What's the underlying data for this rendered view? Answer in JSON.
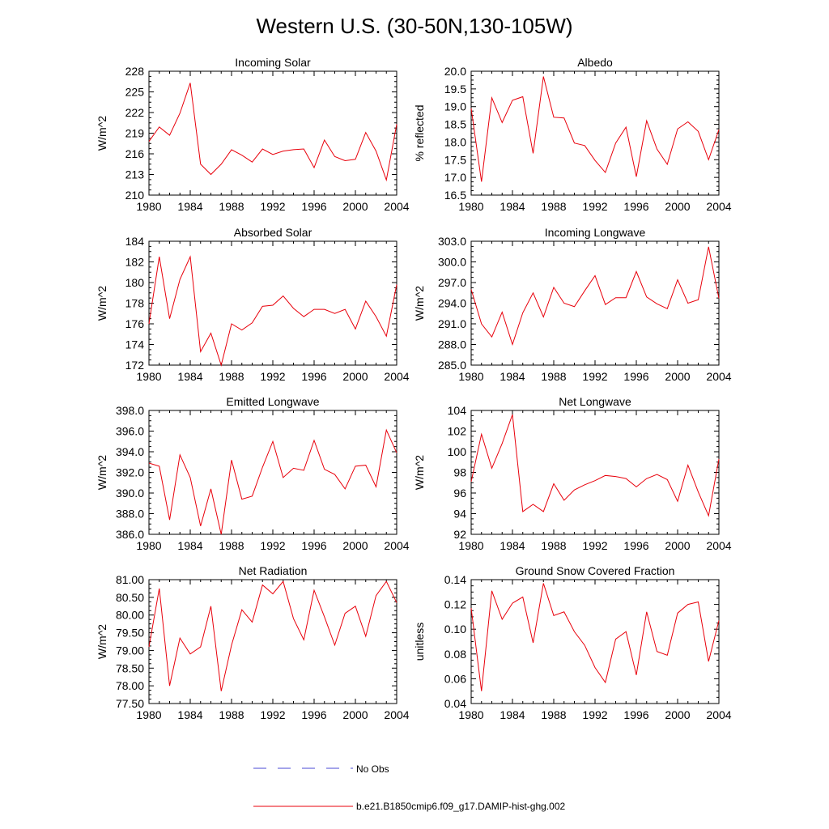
{
  "title": "Western U.S. (30-50N,130-105W)",
  "legend": {
    "items": [
      {
        "label": "No Obs",
        "color": "#4a4ad6",
        "dash": true
      },
      {
        "label": "b.e21.B1850cmip6.f09_g17.DAMIP-hist-ghg.002",
        "color": "#e8000b",
        "dash": false
      }
    ]
  },
  "colors": {
    "series": "#e8000b",
    "obs": "#4a4ad6",
    "axis": "#000000"
  },
  "chart_data": [
    {
      "type": "line",
      "title": "Incoming Solar",
      "xlabel": "",
      "ylabel": "W/m^2",
      "xlim": [
        1980,
        2004
      ],
      "ylim": [
        210,
        228
      ],
      "xticks": [
        1980,
        1984,
        1988,
        1992,
        1996,
        2000,
        2004
      ],
      "xticklabels": [
        "1980",
        "1984",
        "1988",
        "1992",
        "1996",
        "2000",
        "2004"
      ],
      "yticks": [
        210,
        213,
        216,
        219,
        222,
        225,
        228
      ],
      "yticklabels": [
        "210",
        "213",
        "216",
        "219",
        "222",
        "225",
        "228"
      ],
      "series": [
        {
          "name": "b.e21.B1850cmip6.f09_g17.DAMIP-hist-ghg.002",
          "x": [
            1980,
            1981,
            1982,
            1983,
            1984,
            1985,
            1986,
            1987,
            1988,
            1989,
            1990,
            1991,
            1992,
            1993,
            1994,
            1995,
            1996,
            1997,
            1998,
            1999,
            2000,
            2001,
            2002,
            2003,
            2004
          ],
          "values": [
            217.8,
            219.9,
            218.7,
            221.9,
            226.3,
            214.5,
            213.0,
            214.5,
            216.6,
            215.8,
            214.8,
            216.7,
            215.9,
            216.4,
            216.6,
            216.7,
            214.0,
            218.0,
            215.6,
            215.0,
            215.2,
            219.1,
            216.4,
            212.2,
            220.3
          ]
        }
      ]
    },
    {
      "type": "line",
      "title": "Albedo",
      "xlabel": "",
      "ylabel": "% reflected",
      "xlim": [
        1980,
        2004
      ],
      "ylim": [
        16.5,
        20.0
      ],
      "xticks": [
        1980,
        1984,
        1988,
        1992,
        1996,
        2000,
        2004
      ],
      "xticklabels": [
        "1980",
        "1984",
        "1988",
        "1992",
        "1996",
        "2000",
        "2004"
      ],
      "yticks": [
        16.5,
        17.0,
        17.5,
        18.0,
        18.5,
        19.0,
        19.5,
        20.0
      ],
      "yticklabels": [
        "16.5",
        "17.0",
        "17.5",
        "18.0",
        "18.5",
        "19.0",
        "19.5",
        "20.0"
      ],
      "series": [
        {
          "name": "b.e21.B1850cmip6.f09_g17.DAMIP-hist-ghg.002",
          "x": [
            1980,
            1981,
            1982,
            1983,
            1984,
            1985,
            1986,
            1987,
            1988,
            1989,
            1990,
            1991,
            1992,
            1993,
            1994,
            1995,
            1996,
            1997,
            1998,
            1999,
            2000,
            2001,
            2002,
            2003,
            2004
          ],
          "values": [
            18.95,
            16.88,
            19.25,
            18.55,
            19.18,
            19.28,
            17.68,
            19.85,
            18.7,
            18.68,
            17.97,
            17.9,
            17.48,
            17.14,
            17.97,
            18.42,
            17.02,
            18.6,
            17.8,
            17.37,
            18.37,
            18.57,
            18.3,
            17.5,
            18.35
          ]
        }
      ]
    },
    {
      "type": "line",
      "title": "Absorbed Solar",
      "xlabel": "",
      "ylabel": "W/m^2",
      "xlim": [
        1980,
        2004
      ],
      "ylim": [
        172,
        184
      ],
      "xticks": [
        1980,
        1984,
        1988,
        1992,
        1996,
        2000,
        2004
      ],
      "xticklabels": [
        "1980",
        "1984",
        "1988",
        "1992",
        "1996",
        "2000",
        "2004"
      ],
      "yticks": [
        172,
        174,
        176,
        178,
        180,
        182,
        184
      ],
      "yticklabels": [
        "172",
        "174",
        "176",
        "178",
        "180",
        "182",
        "184"
      ],
      "series": [
        {
          "name": "b.e21.B1850cmip6.f09_g17.DAMIP-hist-ghg.002",
          "x": [
            1980,
            1981,
            1982,
            1983,
            1984,
            1985,
            1986,
            1987,
            1988,
            1989,
            1990,
            1991,
            1992,
            1993,
            1994,
            1995,
            1996,
            1997,
            1998,
            1999,
            2000,
            2001,
            2002,
            2003,
            2004
          ],
          "values": [
            176.0,
            182.5,
            176.5,
            180.3,
            182.5,
            173.3,
            175.1,
            172.0,
            176.0,
            175.4,
            176.1,
            177.7,
            177.8,
            178.7,
            177.5,
            176.7,
            177.4,
            177.4,
            177.0,
            177.4,
            175.5,
            178.2,
            176.7,
            174.8,
            179.8
          ]
        }
      ]
    },
    {
      "type": "line",
      "title": "Incoming Longwave",
      "xlabel": "",
      "ylabel": "W/m^2",
      "xlim": [
        1980,
        2004
      ],
      "ylim": [
        285.0,
        303.0
      ],
      "xticks": [
        1980,
        1984,
        1988,
        1992,
        1996,
        2000,
        2004
      ],
      "xticklabels": [
        "1980",
        "1984",
        "1988",
        "1992",
        "1996",
        "2000",
        "2004"
      ],
      "yticks": [
        285,
        288,
        291,
        294,
        297,
        300,
        303
      ],
      "yticklabels": [
        "285.0",
        "288.0",
        "291.0",
        "294.0",
        "297.0",
        "300.0",
        "303.0"
      ],
      "series": [
        {
          "name": "b.e21.B1850cmip6.f09_g17.DAMIP-hist-ghg.002",
          "x": [
            1980,
            1981,
            1982,
            1983,
            1984,
            1985,
            1986,
            1987,
            1988,
            1989,
            1990,
            1991,
            1992,
            1993,
            1994,
            1995,
            1996,
            1997,
            1998,
            1999,
            2000,
            2001,
            2002,
            2003,
            2004
          ],
          "values": [
            296.0,
            291.0,
            289.1,
            292.7,
            288.0,
            292.6,
            295.5,
            292.0,
            296.3,
            294.0,
            293.5,
            295.8,
            298.0,
            293.8,
            294.8,
            294.8,
            298.6,
            294.9,
            293.9,
            293.2,
            297.4,
            294.0,
            294.5,
            302.2,
            294.7
          ]
        }
      ]
    },
    {
      "type": "line",
      "title": "Emitted Longwave",
      "xlabel": "",
      "ylabel": "W/m^2",
      "xlim": [
        1980,
        2004
      ],
      "ylim": [
        386.0,
        398.0
      ],
      "xticks": [
        1980,
        1984,
        1988,
        1992,
        1996,
        2000,
        2004
      ],
      "xticklabels": [
        "1980",
        "1984",
        "1988",
        "1992",
        "1996",
        "2000",
        "2004"
      ],
      "yticks": [
        386,
        388,
        390,
        392,
        394,
        396,
        398
      ],
      "yticklabels": [
        "386.0",
        "388.0",
        "390.0",
        "392.0",
        "394.0",
        "396.0",
        "398.0"
      ],
      "series": [
        {
          "name": "b.e21.B1850cmip6.f09_g17.DAMIP-hist-ghg.002",
          "x": [
            1980,
            1981,
            1982,
            1983,
            1984,
            1985,
            1986,
            1987,
            1988,
            1989,
            1990,
            1991,
            1992,
            1993,
            1994,
            1995,
            1996,
            1997,
            1998,
            1999,
            2000,
            2001,
            2002,
            2003,
            2004
          ],
          "values": [
            392.9,
            392.6,
            387.4,
            393.7,
            391.5,
            386.8,
            390.4,
            386.0,
            393.2,
            389.4,
            389.7,
            392.5,
            395.0,
            391.5,
            392.4,
            392.2,
            395.1,
            392.3,
            391.8,
            390.4,
            392.6,
            392.7,
            390.6,
            396.1,
            393.9
          ]
        }
      ]
    },
    {
      "type": "line",
      "title": "Net Longwave",
      "xlabel": "",
      "ylabel": "W/m^2",
      "xlim": [
        1980,
        2004
      ],
      "ylim": [
        92,
        104
      ],
      "xticks": [
        1980,
        1984,
        1988,
        1992,
        1996,
        2000,
        2004
      ],
      "xticklabels": [
        "1980",
        "1984",
        "1988",
        "1992",
        "1996",
        "2000",
        "2004"
      ],
      "yticks": [
        92,
        94,
        96,
        98,
        100,
        102,
        104
      ],
      "yticklabels": [
        "92",
        "94",
        "96",
        "98",
        "100",
        "102",
        "104"
      ],
      "series": [
        {
          "name": "b.e21.B1850cmip6.f09_g17.DAMIP-hist-ghg.002",
          "x": [
            1980,
            1981,
            1982,
            1983,
            1984,
            1985,
            1986,
            1987,
            1988,
            1989,
            1990,
            1991,
            1992,
            1993,
            1994,
            1995,
            1996,
            1997,
            1998,
            1999,
            2000,
            2001,
            2002,
            2003,
            2004
          ],
          "values": [
            97.1,
            101.7,
            98.4,
            100.8,
            103.6,
            94.2,
            94.9,
            94.2,
            96.9,
            95.3,
            96.3,
            96.8,
            97.2,
            97.7,
            97.6,
            97.4,
            96.6,
            97.4,
            97.8,
            97.3,
            95.2,
            98.7,
            96.1,
            93.8,
            99.3
          ]
        }
      ]
    },
    {
      "type": "line",
      "title": "Net Radiation",
      "xlabel": "",
      "ylabel": "W/m^2",
      "xlim": [
        1980,
        2004
      ],
      "ylim": [
        77.5,
        81.0
      ],
      "xticks": [
        1980,
        1984,
        1988,
        1992,
        1996,
        2000,
        2004
      ],
      "xticklabels": [
        "1980",
        "1984",
        "1988",
        "1992",
        "1996",
        "2000",
        "2004"
      ],
      "yticks": [
        77.5,
        78.0,
        78.5,
        79.0,
        79.5,
        80.0,
        80.5,
        81.0
      ],
      "yticklabels": [
        "77.50",
        "78.00",
        "78.50",
        "79.00",
        "79.50",
        "80.00",
        "80.50",
        "81.00"
      ],
      "series": [
        {
          "name": "b.e21.B1850cmip6.f09_g17.DAMIP-hist-ghg.002",
          "x": [
            1980,
            1981,
            1982,
            1983,
            1984,
            1985,
            1986,
            1987,
            1988,
            1989,
            1990,
            1991,
            1992,
            1993,
            1994,
            1995,
            1996,
            1997,
            1998,
            1999,
            2000,
            2001,
            2002,
            2003,
            2004
          ],
          "values": [
            79.1,
            80.75,
            78.0,
            79.35,
            78.9,
            79.1,
            80.25,
            77.85,
            79.15,
            80.15,
            79.8,
            80.85,
            80.6,
            80.95,
            79.9,
            79.3,
            80.7,
            79.95,
            79.15,
            80.05,
            80.25,
            79.4,
            80.55,
            80.95,
            80.35
          ]
        }
      ]
    },
    {
      "type": "line",
      "title": "Ground Snow Covered Fraction",
      "xlabel": "",
      "ylabel": "unitless",
      "xlim": [
        1980,
        2004
      ],
      "ylim": [
        0.04,
        0.14
      ],
      "xticks": [
        1980,
        1984,
        1988,
        1992,
        1996,
        2000,
        2004
      ],
      "xticklabels": [
        "1980",
        "1984",
        "1988",
        "1992",
        "1996",
        "2000",
        "2004"
      ],
      "yticks": [
        0.04,
        0.06,
        0.08,
        0.1,
        0.12,
        0.14
      ],
      "yticklabels": [
        "0.04",
        "0.06",
        "0.08",
        "0.10",
        "0.12",
        "0.14"
      ],
      "series": [
        {
          "name": "b.e21.B1850cmip6.f09_g17.DAMIP-hist-ghg.002",
          "x": [
            1980,
            1981,
            1982,
            1983,
            1984,
            1985,
            1986,
            1987,
            1988,
            1989,
            1990,
            1991,
            1992,
            1993,
            1994,
            1995,
            1996,
            1997,
            1998,
            1999,
            2000,
            2001,
            2002,
            2003,
            2004
          ],
          "values": [
            0.117,
            0.05,
            0.131,
            0.108,
            0.121,
            0.126,
            0.089,
            0.137,
            0.111,
            0.114,
            0.098,
            0.087,
            0.069,
            0.057,
            0.092,
            0.098,
            0.063,
            0.114,
            0.082,
            0.079,
            0.113,
            0.12,
            0.122,
            0.074,
            0.107
          ]
        }
      ]
    }
  ]
}
